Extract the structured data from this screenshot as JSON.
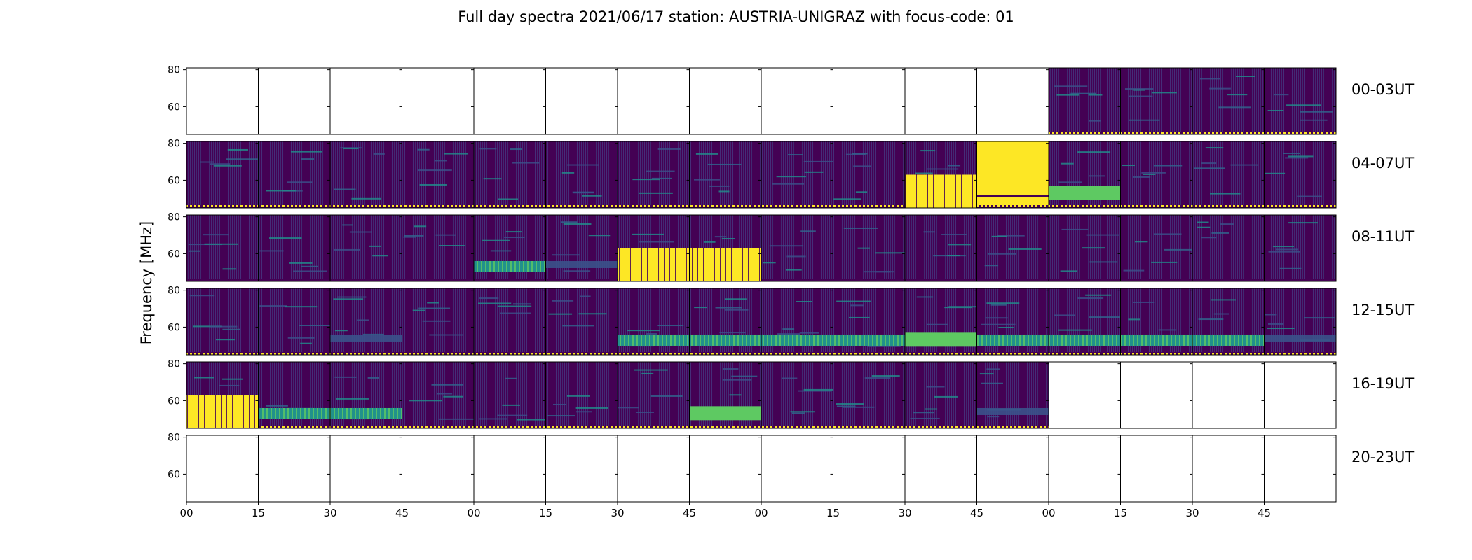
{
  "figure": {
    "title": "Full day spectra 2021/06/17 station: AUSTRIA-UNIGRAZ with focus-code: 01",
    "ylabel": "Frequency [MHz]"
  },
  "chart_data": {
    "type": "heatmap",
    "title": "Full day spectra 2021/06/17 station: AUSTRIA-UNIGRAZ with focus-code: 01",
    "ylabel": "Frequency [MHz]",
    "xlabel": "",
    "ylim": [
      45,
      81
    ],
    "y_ticks": [
      60,
      80
    ],
    "x_ticks": [
      "00",
      "15",
      "30",
      "45",
      "00",
      "15",
      "30",
      "45",
      "00",
      "15",
      "30",
      "45",
      "00",
      "15",
      "30",
      "45"
    ],
    "colormap": [
      "#440154",
      "#3b528b",
      "#21918c",
      "#5ec962",
      "#fde725"
    ],
    "rows": [
      {
        "label": "00-03UT",
        "panels": [
          0,
          0,
          0,
          0,
          0,
          0,
          0,
          0,
          0,
          0,
          0,
          0,
          1,
          1,
          1,
          1
        ],
        "features": [
          [
            0,
            0,
            0,
            0,
            0,
            0,
            0,
            0,
            0,
            0,
            0,
            0,
            0,
            0,
            0,
            0
          ]
        ]
      },
      {
        "label": "04-07UT",
        "panels": [
          1,
          1,
          1,
          1,
          1,
          1,
          1,
          1,
          1,
          1,
          1,
          1,
          1,
          1,
          1,
          1
        ],
        "features": [
          [
            0,
            0,
            0,
            0,
            0,
            0,
            0,
            0,
            0,
            0,
            4,
            5,
            3,
            0,
            0,
            0
          ]
        ]
      },
      {
        "label": "08-11UT",
        "panels": [
          1,
          1,
          1,
          1,
          1,
          1,
          1,
          1,
          1,
          1,
          1,
          1,
          1,
          1,
          1,
          1
        ],
        "features": [
          [
            0,
            0,
            0,
            0,
            2,
            1,
            4,
            4,
            0,
            0,
            0,
            0,
            0,
            0,
            0,
            0
          ]
        ]
      },
      {
        "label": "12-15UT",
        "panels": [
          1,
          1,
          1,
          1,
          1,
          1,
          1,
          1,
          1,
          1,
          1,
          1,
          1,
          1,
          1,
          1
        ],
        "features": [
          [
            0,
            0,
            1,
            0,
            0,
            0,
            2,
            2,
            2,
            2,
            3,
            2,
            2,
            2,
            2,
            1
          ]
        ]
      },
      {
        "label": "16-19UT",
        "panels": [
          1,
          1,
          1,
          1,
          1,
          1,
          1,
          1,
          1,
          1,
          1,
          1,
          0,
          0,
          0,
          0
        ],
        "features": [
          [
            4,
            2,
            2,
            0,
            0,
            0,
            0,
            3,
            0,
            0,
            0,
            1,
            0,
            0,
            0,
            0
          ]
        ]
      },
      {
        "label": "20-23UT",
        "panels": [
          0,
          0,
          0,
          0,
          0,
          0,
          0,
          0,
          0,
          0,
          0,
          0,
          0,
          0,
          0,
          0
        ],
        "features": [
          [
            0,
            0,
            0,
            0,
            0,
            0,
            0,
            0,
            0,
            0,
            0,
            0,
            0,
            0,
            0,
            0
          ]
        ]
      }
    ]
  }
}
